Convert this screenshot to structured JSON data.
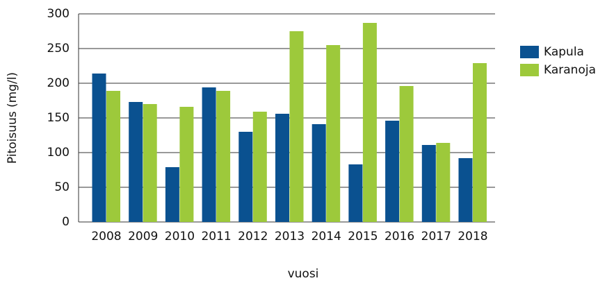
{
  "chart_data": {
    "type": "bar",
    "xlabel": "vuosi",
    "ylabel": "Pitoisuus (mg/l)",
    "categories": [
      "2008",
      "2009",
      "2010",
      "2011",
      "2012",
      "2013",
      "2014",
      "2015",
      "2016",
      "2017",
      "2018"
    ],
    "series": [
      {
        "name": "Kapula",
        "color": "#0a5190",
        "values": [
          214,
          173,
          79,
          194,
          130,
          156,
          141,
          83,
          146,
          111,
          92
        ]
      },
      {
        "name": "Karanoja",
        "color": "#9dc93b",
        "values": [
          189,
          170,
          166,
          189,
          159,
          275,
          255,
          287,
          196,
          114,
          229
        ]
      }
    ],
    "ylim": [
      0,
      300
    ],
    "yticks": [
      0,
      50,
      100,
      150,
      200,
      250,
      300
    ],
    "grid": true,
    "legend": "right"
  }
}
